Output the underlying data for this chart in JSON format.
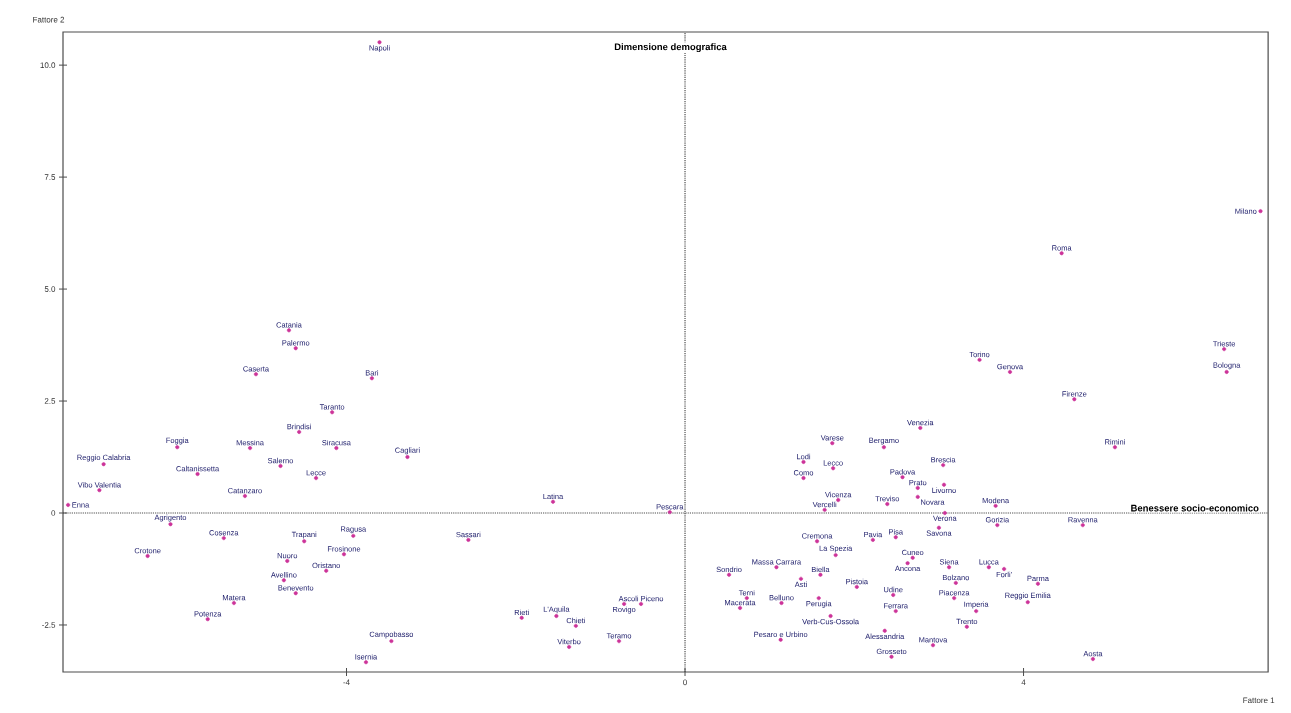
{
  "chart_data": {
    "type": "scatter",
    "xlabel": "Fattore 1",
    "ylabel": "Fattore 2",
    "xlim": [
      -7.35,
      6.89
    ],
    "ylim": [
      -3.55,
      10.74
    ],
    "xticks": [
      -4,
      0,
      4
    ],
    "yticks": [
      {
        "value": -2.5,
        "label": "-2.5"
      },
      {
        "value": 0,
        "label": "0"
      },
      {
        "value": 2.5,
        "label": "2.5"
      },
      {
        "value": 5,
        "label": "5.0"
      },
      {
        "value": 7.5,
        "label": "7.5"
      },
      {
        "value": 10,
        "label": "10.0"
      }
    ],
    "marker": "circle",
    "grid": false,
    "series": [
      {
        "color": "#cc3399",
        "x": [
          -3.61,
          -4.68,
          -4.6,
          -5.07,
          -3.7,
          -4.17,
          -4.56,
          -5.14,
          -4.12,
          -3.28,
          -4.78,
          -4.36,
          -6.0,
          -6.87,
          -5.76,
          -6.92,
          -7.29,
          -5.2,
          -6.08,
          -6.35,
          -5.45,
          -4.5,
          -3.92,
          -4.03,
          -4.7,
          -4.24,
          -4.74,
          -4.6,
          -5.33,
          -5.64,
          -3.47,
          -3.77,
          -2.56,
          -1.56,
          -0.18,
          -0.52,
          -0.72,
          -1.93,
          -1.52,
          -1.29,
          -0.78,
          -1.37,
          1.74,
          1.75,
          1.4,
          1.4,
          1.81,
          1.65,
          2.39,
          1.56,
          1.78,
          1.08,
          0.52,
          1.6,
          0.73,
          1.37,
          1.58,
          0.65,
          1.14,
          1.72,
          1.13,
          2.03,
          2.35,
          2.78,
          3.05,
          2.57,
          2.75,
          3.06,
          2.75,
          3.07,
          3.67,
          2.22,
          2.49,
          3.0,
          3.69,
          2.69,
          2.63,
          3.12,
          3.59,
          3.77,
          3.2,
          4.17,
          2.46,
          3.18,
          4.05,
          2.49,
          3.44,
          2.36,
          3.33,
          2.93,
          2.44,
          4.7,
          4.82,
          5.08,
          4.6,
          3.48,
          3.84,
          4.45,
          6.8,
          6.37,
          6.4
        ],
        "values": [
          10.51,
          4.08,
          3.68,
          3.1,
          3.01,
          2.25,
          1.81,
          1.45,
          1.45,
          1.25,
          1.05,
          0.78,
          1.47,
          1.09,
          0.87,
          0.51,
          0.18,
          0.38,
          -0.25,
          -0.96,
          -0.56,
          -0.63,
          -0.51,
          -0.92,
          -1.07,
          -1.29,
          -1.5,
          -1.79,
          -2.01,
          -2.37,
          -2.86,
          -3.33,
          -0.6,
          0.25,
          0.02,
          -2.03,
          -2.03,
          -2.34,
          -2.3,
          -2.52,
          -2.86,
          -2.99,
          1.56,
          1.0,
          1.14,
          0.78,
          0.29,
          0.07,
          0.2,
          -0.63,
          -0.94,
          -1.21,
          -1.38,
          -1.38,
          -1.9,
          -1.47,
          -1.9,
          -2.12,
          -2.01,
          -2.3,
          -2.83,
          -1.65,
          1.47,
          1.9,
          1.07,
          0.8,
          0.56,
          0.63,
          0.36,
          0.0,
          0.16,
          -0.6,
          -0.54,
          -0.33,
          -0.27,
          -1.0,
          -1.12,
          -1.21,
          -1.21,
          -1.25,
          -1.56,
          -1.58,
          -1.83,
          -1.9,
          -1.99,
          -2.19,
          -2.19,
          -2.63,
          -2.54,
          -2.95,
          -3.21,
          -0.27,
          -3.26,
          1.47,
          2.54,
          3.42,
          3.15,
          5.8,
          6.74,
          3.66,
          3.15
        ]
      }
    ],
    "ref_lines": [
      {
        "axis": "x",
        "value": 0,
        "label": "Dimensione demografica",
        "line_style": "dotted"
      },
      {
        "axis": "y",
        "value": 0,
        "label": "Benessere socio-economico",
        "line_style": "dotted"
      }
    ],
    "annotations": [
      {
        "text": "Napoli",
        "x": -3.61,
        "y": 10.51
      },
      {
        "text": "Catania",
        "x": -4.68,
        "y": 4.08
      },
      {
        "text": "Palermo",
        "x": -4.6,
        "y": 3.68
      },
      {
        "text": "Caserta",
        "x": -5.07,
        "y": 3.1
      },
      {
        "text": "Bari",
        "x": -3.7,
        "y": 3.01
      },
      {
        "text": "Taranto",
        "x": -4.17,
        "y": 2.25
      },
      {
        "text": "Brindisi",
        "x": -4.56,
        "y": 1.81
      },
      {
        "text": "Messina",
        "x": -5.14,
        "y": 1.45
      },
      {
        "text": "Siracusa",
        "x": -4.12,
        "y": 1.45
      },
      {
        "text": "Cagliari",
        "x": -3.28,
        "y": 1.25
      },
      {
        "text": "Salerno",
        "x": -4.78,
        "y": 1.05
      },
      {
        "text": "Lecce",
        "x": -4.36,
        "y": 0.78
      },
      {
        "text": "Foggia",
        "x": -6.0,
        "y": 1.47
      },
      {
        "text": "Reggio Calabria",
        "x": -6.87,
        "y": 1.09
      },
      {
        "text": "Caltanissetta",
        "x": -5.76,
        "y": 0.87
      },
      {
        "text": "Vibo Valentia",
        "x": -6.92,
        "y": 0.51
      },
      {
        "text": "Enna",
        "x": -7.29,
        "y": 0.18
      },
      {
        "text": "Catanzaro",
        "x": -5.2,
        "y": 0.38
      },
      {
        "text": "Agrigento",
        "x": -6.08,
        "y": -0.25
      },
      {
        "text": "Crotone",
        "x": -6.35,
        "y": -0.96
      },
      {
        "text": "Cosenza",
        "x": -5.45,
        "y": -0.56
      },
      {
        "text": "Trapani",
        "x": -4.5,
        "y": -0.63
      },
      {
        "text": "Ragusa",
        "x": -3.92,
        "y": -0.51
      },
      {
        "text": "Frosinone",
        "x": -4.03,
        "y": -0.92
      },
      {
        "text": "Nuoro",
        "x": -4.7,
        "y": -1.07
      },
      {
        "text": "Oristano",
        "x": -4.24,
        "y": -1.29
      },
      {
        "text": "Avellino",
        "x": -4.74,
        "y": -1.5
      },
      {
        "text": "Benevento",
        "x": -4.6,
        "y": -1.79
      },
      {
        "text": "Matera",
        "x": -5.33,
        "y": -2.01
      },
      {
        "text": "Potenza",
        "x": -5.64,
        "y": -2.37
      },
      {
        "text": "Campobasso",
        "x": -3.47,
        "y": -2.86
      },
      {
        "text": "Isernia",
        "x": -3.77,
        "y": -3.33
      },
      {
        "text": "Sassari",
        "x": -2.56,
        "y": -0.6
      },
      {
        "text": "Latina",
        "x": -1.56,
        "y": 0.25
      },
      {
        "text": "Pescara",
        "x": -0.18,
        "y": 0.02
      },
      {
        "text": "Ascoli Piceno",
        "x": -0.52,
        "y": -2.03
      },
      {
        "text": "Rovigo",
        "x": -0.72,
        "y": -2.03
      },
      {
        "text": "Rieti",
        "x": -1.93,
        "y": -2.34
      },
      {
        "text": "L'Aquila",
        "x": -1.52,
        "y": -2.3
      },
      {
        "text": "Chieti",
        "x": -1.29,
        "y": -2.52
      },
      {
        "text": "Teramo",
        "x": -0.78,
        "y": -2.86
      },
      {
        "text": "Viterbo",
        "x": -1.37,
        "y": -2.99
      },
      {
        "text": "Varese",
        "x": 1.74,
        "y": 1.56
      },
      {
        "text": "Lecco",
        "x": 1.75,
        "y": 1.0
      },
      {
        "text": "Lodi",
        "x": 1.4,
        "y": 1.14
      },
      {
        "text": "Como",
        "x": 1.4,
        "y": 0.78
      },
      {
        "text": "Vicenza",
        "x": 1.81,
        "y": 0.29
      },
      {
        "text": "Vercelli",
        "x": 1.65,
        "y": 0.07
      },
      {
        "text": "Treviso",
        "x": 2.39,
        "y": 0.2
      },
      {
        "text": "Cremona",
        "x": 1.56,
        "y": -0.63
      },
      {
        "text": "La Spezia",
        "x": 1.78,
        "y": -0.94
      },
      {
        "text": "Massa Carrara",
        "x": 1.08,
        "y": -1.21
      },
      {
        "text": "Sondrio",
        "x": 0.52,
        "y": -1.38
      },
      {
        "text": "Biella",
        "x": 1.6,
        "y": -1.38
      },
      {
        "text": "Terni",
        "x": 0.73,
        "y": -1.9
      },
      {
        "text": "Asti",
        "x": 1.37,
        "y": -1.47
      },
      {
        "text": "Perugia",
        "x": 1.58,
        "y": -1.9
      },
      {
        "text": "Macerata",
        "x": 0.65,
        "y": -2.12
      },
      {
        "text": "Belluno",
        "x": 1.14,
        "y": -2.01
      },
      {
        "text": "Verb-Cus-Ossola",
        "x": 1.72,
        "y": -2.3
      },
      {
        "text": "Pesaro e Urbino",
        "x": 1.13,
        "y": -2.83
      },
      {
        "text": "Pistoia",
        "x": 2.03,
        "y": -1.65
      },
      {
        "text": "Bergamo",
        "x": 2.35,
        "y": 1.47
      },
      {
        "text": "Venezia",
        "x": 2.78,
        "y": 1.9
      },
      {
        "text": "Brescia",
        "x": 3.05,
        "y": 1.07
      },
      {
        "text": "Padova",
        "x": 2.57,
        "y": 0.8
      },
      {
        "text": "Prato",
        "x": 2.75,
        "y": 0.56
      },
      {
        "text": "Livorno",
        "x": 3.06,
        "y": 0.63
      },
      {
        "text": "Novara",
        "x": 2.75,
        "y": 0.36
      },
      {
        "text": "Verona",
        "x": 3.07,
        "y": 0.0
      },
      {
        "text": "Modena",
        "x": 3.67,
        "y": 0.16
      },
      {
        "text": "Pavia",
        "x": 2.22,
        "y": -0.6
      },
      {
        "text": "Pisa",
        "x": 2.49,
        "y": -0.54
      },
      {
        "text": "Savona",
        "x": 3.0,
        "y": -0.33
      },
      {
        "text": "Gorizia",
        "x": 3.69,
        "y": -0.27
      },
      {
        "text": "Cuneo",
        "x": 2.69,
        "y": -1.0
      },
      {
        "text": "Ancona",
        "x": 2.63,
        "y": -1.12
      },
      {
        "text": "Siena",
        "x": 3.12,
        "y": -1.21
      },
      {
        "text": "Lucca",
        "x": 3.59,
        "y": -1.21
      },
      {
        "text": "Forli'",
        "x": 3.77,
        "y": -1.25
      },
      {
        "text": "Bolzano",
        "x": 3.2,
        "y": -1.56
      },
      {
        "text": "Parma",
        "x": 4.17,
        "y": -1.58
      },
      {
        "text": "Udine",
        "x": 2.46,
        "y": -1.83
      },
      {
        "text": "Piacenza",
        "x": 3.18,
        "y": -1.9
      },
      {
        "text": "Reggio Emilia",
        "x": 4.05,
        "y": -1.99
      },
      {
        "text": "Ferrara",
        "x": 2.49,
        "y": -2.19
      },
      {
        "text": "Imperia",
        "x": 3.44,
        "y": -2.19
      },
      {
        "text": "Alessandria",
        "x": 2.36,
        "y": -2.63
      },
      {
        "text": "Trento",
        "x": 3.33,
        "y": -2.54
      },
      {
        "text": "Mantova",
        "x": 2.93,
        "y": -2.95
      },
      {
        "text": "Grosseto",
        "x": 2.44,
        "y": -3.21
      },
      {
        "text": "Ravenna",
        "x": 4.7,
        "y": -0.27
      },
      {
        "text": "Aosta",
        "x": 4.82,
        "y": -3.26
      },
      {
        "text": "Rimini",
        "x": 5.08,
        "y": 1.47
      },
      {
        "text": "Firenze",
        "x": 4.6,
        "y": 2.54
      },
      {
        "text": "Torino",
        "x": 3.48,
        "y": 3.42
      },
      {
        "text": "Genova",
        "x": 3.84,
        "y": 3.15
      },
      {
        "text": "Roma",
        "x": 4.45,
        "y": 5.8
      },
      {
        "text": "Milano",
        "x": 6.8,
        "y": 6.74
      },
      {
        "text": "Trieste",
        "x": 6.37,
        "y": 3.66
      },
      {
        "text": "Bologna",
        "x": 6.4,
        "y": 3.15
      }
    ]
  }
}
